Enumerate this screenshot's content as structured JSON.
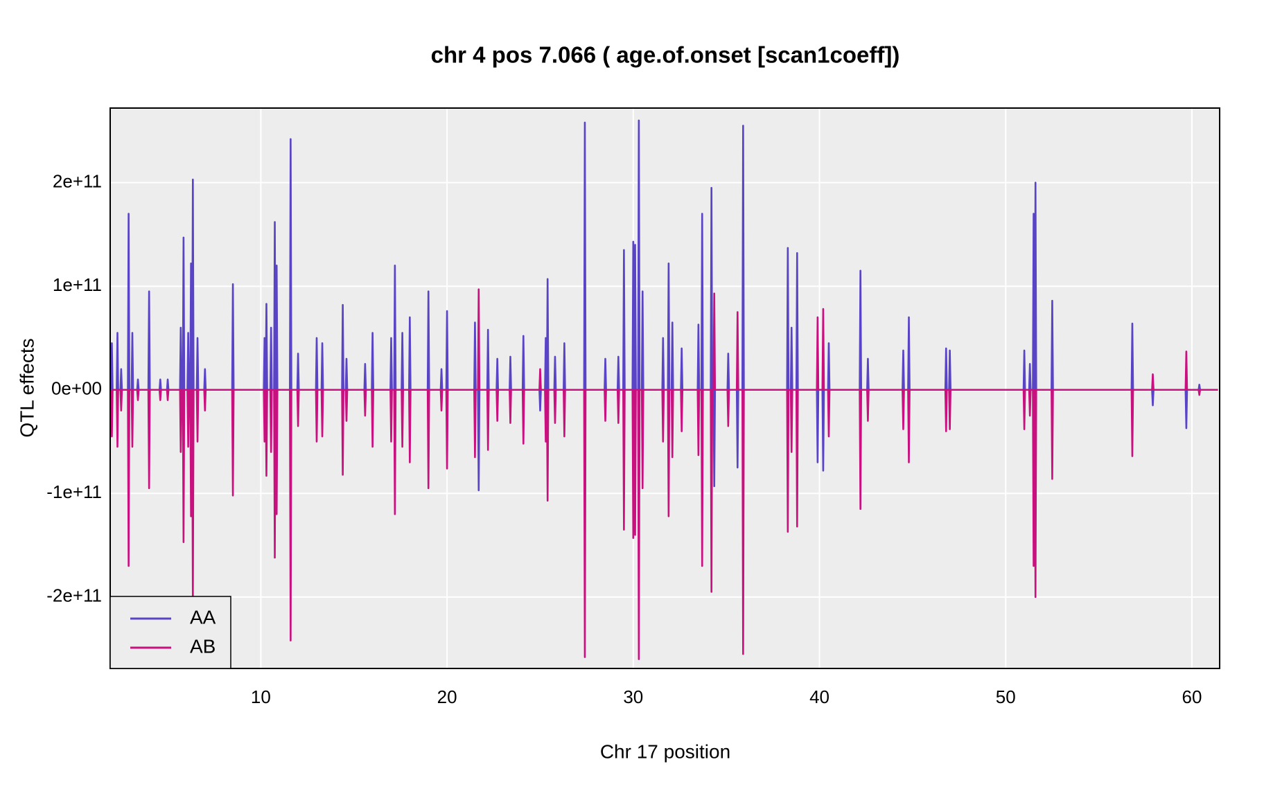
{
  "chart_data": {
    "type": "line",
    "title": "chr 4 pos 7.066 ( age.of.onset  [scan1coeff])",
    "x_label": "Chr 17 position",
    "y_label": "QTL effects",
    "xlim": [
      1.91,
      61.49
    ],
    "ylim": [
      -269000000000.0,
      272000000000.0
    ],
    "xticks": [
      10,
      20,
      30,
      40,
      50,
      60
    ],
    "yticks": [
      {
        "value": -200000000000.0,
        "label": "-2e+11"
      },
      {
        "value": -100000000000.0,
        "label": "-1e+11"
      },
      {
        "value": 0,
        "label": "0e+00"
      },
      {
        "value": 100000000000.0,
        "label": "1e+11"
      },
      {
        "value": 200000000000.0,
        "label": "2e+11"
      }
    ],
    "grid": true,
    "legend": "bottom-left",
    "x": [
      1.96,
      2.0,
      2.04,
      2.26,
      2.3,
      2.34,
      2.46,
      2.5,
      2.54,
      2.86,
      2.9,
      2.94,
      3.06,
      3.1,
      3.14,
      3.36,
      3.4,
      3.44,
      3.96,
      4.0,
      4.04,
      4.56,
      4.6,
      4.64,
      4.96,
      5.0,
      5.04,
      5.66,
      5.7,
      5.74,
      5.81,
      5.85,
      5.89,
      6.06,
      6.1,
      6.14,
      6.21,
      6.25,
      6.29,
      6.31,
      6.35,
      6.39,
      6.56,
      6.6,
      6.64,
      6.96,
      7.0,
      7.04,
      8.46,
      8.5,
      8.54,
      10.16,
      10.2,
      10.24,
      10.26,
      10.3,
      10.34,
      10.51,
      10.55,
      10.59,
      10.71,
      10.75,
      10.79,
      10.81,
      10.85,
      10.89,
      11.56,
      11.6,
      11.64,
      11.96,
      12.0,
      12.04,
      12.96,
      13.0,
      13.04,
      13.26,
      13.3,
      13.34,
      14.36,
      14.4,
      14.44,
      14.56,
      14.6,
      14.64,
      15.56,
      15.6,
      15.64,
      15.96,
      16.0,
      16.04,
      16.96,
      17.0,
      17.04,
      17.16,
      17.2,
      17.24,
      17.56,
      17.6,
      17.64,
      17.96,
      18.0,
      18.04,
      18.96,
      19.0,
      19.04,
      19.66,
      19.7,
      19.74,
      19.96,
      20.0,
      20.04,
      21.46,
      21.5,
      21.54,
      21.66,
      21.7,
      21.74,
      22.16,
      22.2,
      22.24,
      22.66,
      22.7,
      22.74,
      23.36,
      23.4,
      23.44,
      24.06,
      24.1,
      24.14,
      24.96,
      25.0,
      25.04,
      25.26,
      25.3,
      25.34,
      25.36,
      25.4,
      25.44,
      25.76,
      25.8,
      25.84,
      26.26,
      26.3,
      26.34,
      27.36,
      27.4,
      27.44,
      28.46,
      28.5,
      28.54,
      29.16,
      29.2,
      29.24,
      29.46,
      29.5,
      29.54,
      29.96,
      30.0,
      30.04,
      30.06,
      30.1,
      30.14,
      30.26,
      30.3,
      30.34,
      30.46,
      30.5,
      30.54,
      31.56,
      31.6,
      31.64,
      31.86,
      31.9,
      31.94,
      32.06,
      32.1,
      32.14,
      32.56,
      32.6,
      32.64,
      33.46,
      33.5,
      33.54,
      33.66,
      33.7,
      33.74,
      34.16,
      34.2,
      34.24,
      34.31,
      34.35,
      34.39,
      35.06,
      35.1,
      35.14,
      35.56,
      35.6,
      35.64,
      35.86,
      35.9,
      35.94,
      38.26,
      38.3,
      38.34,
      38.46,
      38.5,
      38.54,
      38.76,
      38.8,
      38.84,
      39.86,
      39.9,
      39.94,
      40.16,
      40.2,
      40.24,
      40.46,
      40.5,
      40.54,
      42.16,
      42.2,
      42.24,
      42.56,
      42.6,
      42.64,
      44.46,
      44.5,
      44.54,
      44.76,
      44.8,
      44.84,
      46.76,
      46.8,
      46.84,
      46.96,
      47.0,
      47.04,
      50.96,
      51.0,
      51.04,
      51.26,
      51.3,
      51.34,
      51.46,
      51.5,
      51.54,
      51.56,
      51.6,
      51.64,
      52.46,
      52.5,
      52.54,
      56.76,
      56.8,
      56.84,
      57.86,
      57.9,
      57.94,
      59.66,
      59.7,
      59.74,
      60.36,
      60.4,
      60.44,
      61.4
    ],
    "series": [
      {
        "name": "AA",
        "color": "#5a44c6",
        "values": [
          0,
          45000000000.0,
          0,
          0,
          55000000000.0,
          0,
          0,
          20000000000.0,
          0,
          0,
          170000000000.0,
          0,
          0,
          55000000000.0,
          0,
          0,
          10000000000.0,
          0,
          0,
          95000000000.0,
          0,
          0,
          10000000000.0,
          0,
          0,
          10000000000.0,
          0,
          0,
          60000000000.0,
          0,
          0,
          147000000000.0,
          0,
          0,
          55000000000.0,
          0,
          0,
          122000000000.0,
          0,
          0,
          203000000000.0,
          0,
          0,
          50000000000.0,
          0,
          0,
          20000000000.0,
          0,
          0,
          102000000000.0,
          0,
          0,
          50000000000.0,
          0,
          0,
          83000000000.0,
          0,
          0,
          60000000000.0,
          0,
          0,
          162000000000.0,
          0,
          0,
          120000000000.0,
          0,
          0,
          242000000000.0,
          0,
          0,
          35000000000.0,
          0,
          0,
          50000000000.0,
          0,
          0,
          45000000000.0,
          0,
          0,
          82000000000.0,
          0,
          0,
          30000000000.0,
          0,
          0,
          25000000000.0,
          0,
          0,
          55000000000.0,
          0,
          0,
          50000000000.0,
          0,
          0,
          120000000000.0,
          0,
          0,
          55000000000.0,
          0,
          0,
          70000000000.0,
          0,
          0,
          95000000000.0,
          0,
          0,
          20000000000.0,
          0,
          0,
          76000000000.0,
          0,
          0,
          65000000000.0,
          0,
          0,
          -97000000000.0,
          0,
          0,
          58000000000.0,
          0,
          0,
          30000000000.0,
          0,
          0,
          32000000000.0,
          0,
          0,
          52000000000.0,
          0,
          0,
          -20000000000.0,
          0,
          0,
          50000000000.0,
          0,
          0,
          107000000000.0,
          0,
          0,
          32000000000.0,
          0,
          0,
          45000000000.0,
          0,
          0,
          258000000000.0,
          0,
          0,
          30000000000.0,
          0,
          0,
          32000000000.0,
          0,
          0,
          135000000000.0,
          0,
          0,
          143000000000.0,
          0,
          0,
          140000000000.0,
          0,
          0,
          260000000000.0,
          0,
          0,
          95000000000.0,
          0,
          0,
          50000000000.0,
          0,
          0,
          122000000000.0,
          0,
          0,
          65000000000.0,
          0,
          0,
          40000000000.0,
          0,
          0,
          63000000000.0,
          0,
          0,
          170000000000.0,
          0,
          0,
          195000000000.0,
          0,
          0,
          -93000000000.0,
          0,
          0,
          35000000000.0,
          0,
          0,
          -75000000000.0,
          0,
          0,
          255000000000.0,
          0,
          0,
          137000000000.0,
          0,
          0,
          60000000000.0,
          0,
          0,
          132000000000.0,
          0,
          0,
          -70000000000.0,
          0,
          0,
          -78000000000.0,
          0,
          0,
          45000000000.0,
          0,
          0,
          115000000000.0,
          0,
          0,
          30000000000.0,
          0,
          0,
          38000000000.0,
          0,
          0,
          70000000000.0,
          0,
          0,
          40000000000.0,
          0,
          0,
          38000000000.0,
          0,
          0,
          38000000000.0,
          0,
          0,
          25000000000.0,
          0,
          0,
          170000000000.0,
          0,
          0,
          200000000000.0,
          0,
          0,
          86000000000.0,
          0,
          0,
          64000000000.0,
          0,
          0,
          -15000000000.0,
          0,
          0,
          -37000000000.0,
          0,
          0,
          5000000000.0,
          0,
          0
        ]
      },
      {
        "name": "AB",
        "color": "#c8107e",
        "values": [
          0,
          -45000000000.0,
          0,
          0,
          -55000000000.0,
          0,
          0,
          -20000000000.0,
          0,
          0,
          -170000000000.0,
          0,
          0,
          -55000000000.0,
          0,
          0,
          -10000000000.0,
          0,
          0,
          -95000000000.0,
          0,
          0,
          -10000000000.0,
          0,
          0,
          -10000000000.0,
          0,
          0,
          -60000000000.0,
          0,
          0,
          -147000000000.0,
          0,
          0,
          -55000000000.0,
          0,
          0,
          -122000000000.0,
          0,
          0,
          -203000000000.0,
          0,
          0,
          -50000000000.0,
          0,
          0,
          -20000000000.0,
          0,
          0,
          -102000000000.0,
          0,
          0,
          -50000000000.0,
          0,
          0,
          -83000000000.0,
          0,
          0,
          -60000000000.0,
          0,
          0,
          -162000000000.0,
          0,
          0,
          -120000000000.0,
          0,
          0,
          -242000000000.0,
          0,
          0,
          -35000000000.0,
          0,
          0,
          -50000000000.0,
          0,
          0,
          -45000000000.0,
          0,
          0,
          -82000000000.0,
          0,
          0,
          -30000000000.0,
          0,
          0,
          -25000000000.0,
          0,
          0,
          -55000000000.0,
          0,
          0,
          -50000000000.0,
          0,
          0,
          -120000000000.0,
          0,
          0,
          -55000000000.0,
          0,
          0,
          -70000000000.0,
          0,
          0,
          -95000000000.0,
          0,
          0,
          -20000000000.0,
          0,
          0,
          -76000000000.0,
          0,
          0,
          -65000000000.0,
          0,
          0,
          97000000000.0,
          0,
          0,
          -58000000000.0,
          0,
          0,
          -30000000000.0,
          0,
          0,
          -32000000000.0,
          0,
          0,
          -52000000000.0,
          0,
          0,
          20000000000.0,
          0,
          0,
          -50000000000.0,
          0,
          0,
          -107000000000.0,
          0,
          0,
          -32000000000.0,
          0,
          0,
          -45000000000.0,
          0,
          0,
          -258000000000.0,
          0,
          0,
          -30000000000.0,
          0,
          0,
          -32000000000.0,
          0,
          0,
          -135000000000.0,
          0,
          0,
          -143000000000.0,
          0,
          0,
          -140000000000.0,
          0,
          0,
          -260000000000.0,
          0,
          0,
          -95000000000.0,
          0,
          0,
          -50000000000.0,
          0,
          0,
          -122000000000.0,
          0,
          0,
          -65000000000.0,
          0,
          0,
          -40000000000.0,
          0,
          0,
          -63000000000.0,
          0,
          0,
          -170000000000.0,
          0,
          0,
          -195000000000.0,
          0,
          0,
          93000000000.0,
          0,
          0,
          -35000000000.0,
          0,
          0,
          75000000000.0,
          0,
          0,
          -255000000000.0,
          0,
          0,
          -137000000000.0,
          0,
          0,
          -60000000000.0,
          0,
          0,
          -132000000000.0,
          0,
          0,
          70000000000.0,
          0,
          0,
          78000000000.0,
          0,
          0,
          -45000000000.0,
          0,
          0,
          -115000000000.0,
          0,
          0,
          -30000000000.0,
          0,
          0,
          -38000000000.0,
          0,
          0,
          -70000000000.0,
          0,
          0,
          -40000000000.0,
          0,
          0,
          -38000000000.0,
          0,
          0,
          -38000000000.0,
          0,
          0,
          -25000000000.0,
          0,
          0,
          -170000000000.0,
          0,
          0,
          -200000000000.0,
          0,
          0,
          -86000000000.0,
          0,
          0,
          -64000000000.0,
          0,
          0,
          15000000000.0,
          0,
          0,
          37000000000.0,
          0,
          0,
          -5000000000.0,
          0,
          0
        ]
      }
    ]
  }
}
